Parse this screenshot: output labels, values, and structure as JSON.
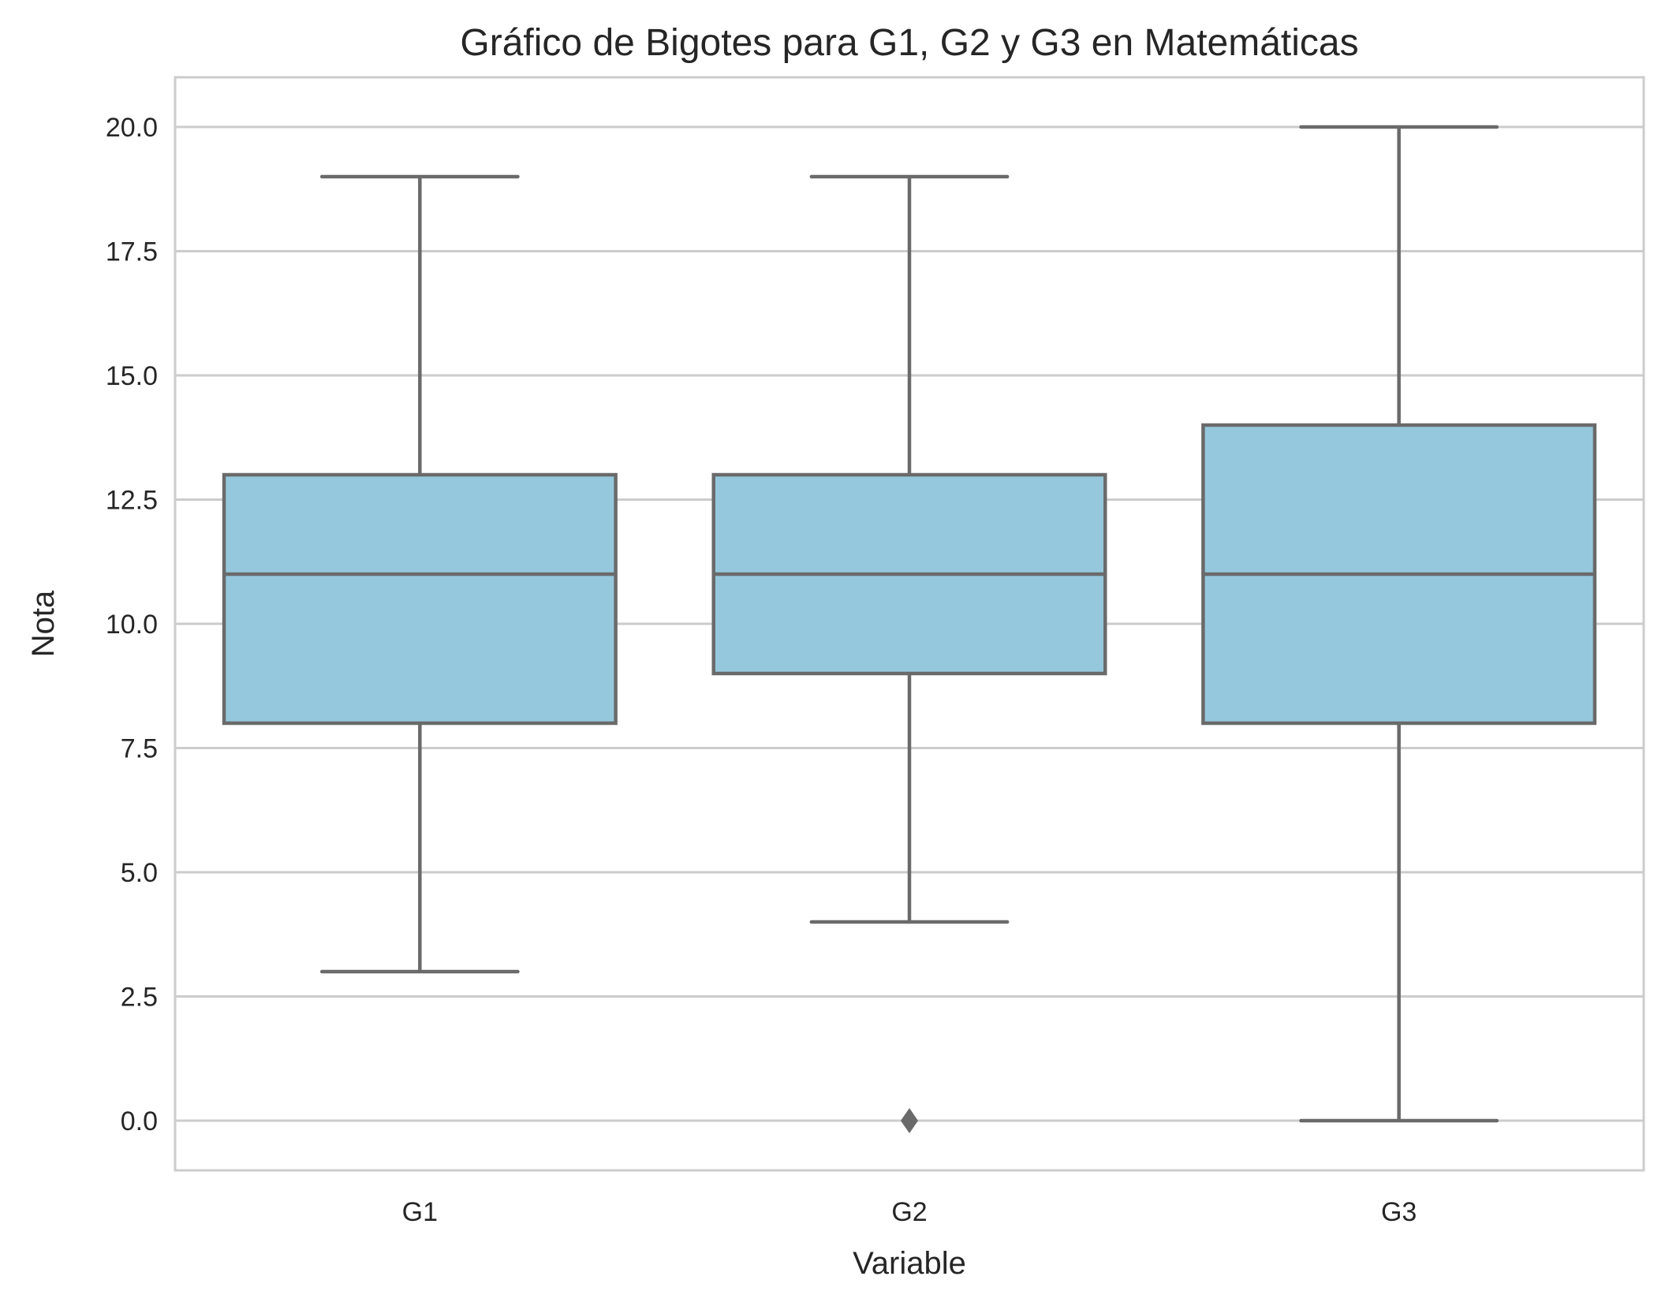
{
  "chart_data": {
    "type": "box",
    "title": "Gráfico de Bigotes para G1, G2 y G3 en Matemáticas",
    "xlabel": "Variable",
    "ylabel": "Nota",
    "categories": [
      "G1",
      "G2",
      "G3"
    ],
    "ylim": [
      -1,
      21
    ],
    "yticks": [
      0.0,
      2.5,
      5.0,
      7.5,
      10.0,
      12.5,
      15.0,
      17.5,
      20.0
    ],
    "ytick_labels": [
      "0.0",
      "2.5",
      "5.0",
      "7.5",
      "10.0",
      "12.5",
      "15.0",
      "17.5",
      "20.0"
    ],
    "grid": "horizontal",
    "boxes": [
      {
        "category": "G1",
        "whisker_low": 3,
        "q1": 8,
        "median": 11,
        "q3": 13,
        "whisker_high": 19,
        "outliers": []
      },
      {
        "category": "G2",
        "whisker_low": 4,
        "q1": 9,
        "median": 11,
        "q3": 13,
        "whisker_high": 19,
        "outliers": [
          0
        ]
      },
      {
        "category": "G3",
        "whisker_low": 0,
        "q1": 8,
        "median": 11,
        "q3": 14,
        "whisker_high": 20,
        "outliers": []
      }
    ],
    "colors": {
      "box_fill": "#96c8dd",
      "line": "#6a6a6a",
      "grid": "#cccccc",
      "frame": "#cccccc",
      "text": "#262626"
    }
  }
}
